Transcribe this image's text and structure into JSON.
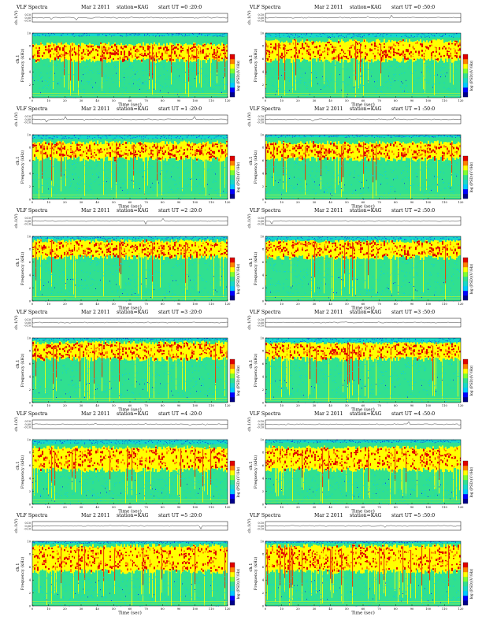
{
  "chart_data": [
    {
      "type": "heatmap",
      "title": "VLF Spectra",
      "date": "Mar 2 2011",
      "station": "station=KAG",
      "start_ut": "start  UT  =0 :20:0",
      "top_ylabel": "ch.1(V)",
      "top_yticks": [
        "0.10",
        "0.00",
        "-0.10"
      ],
      "ylabel_top": "ch.1",
      "ylabel": "Frequency  (kHz)",
      "yticks": [
        "0",
        "2",
        "4",
        "6",
        "8",
        "10"
      ],
      "ylim": [
        0,
        10
      ],
      "xlabel": "Time  (sec)",
      "xticks": [
        "0",
        "10",
        "20",
        "30",
        "40",
        "50",
        "60",
        "70",
        "80",
        "90",
        "100",
        "110",
        "120"
      ],
      "xlim": [
        0,
        120
      ],
      "colorbar_label": "log (PSD)(V²/Hz)",
      "colorbar_range": [
        -4,
        4
      ],
      "colorscale": "blue-cyan-green-yellow-red",
      "band_khz": [
        6,
        8
      ],
      "intensity": 0.55
    },
    {
      "type": "heatmap",
      "title": "VLF Spectra",
      "date": "Mar 2 2011",
      "station": "station=KAG",
      "start_ut": "start  UT  =0 :50:0",
      "top_ylabel": "ch.1(V)",
      "top_yticks": [
        "0.10",
        "0.00",
        "-0.10"
      ],
      "ylabel_top": "ch.1",
      "ylabel": "Frequency  (kHz)",
      "yticks": [
        "0",
        "2",
        "4",
        "6",
        "8",
        "10"
      ],
      "ylim": [
        0,
        10
      ],
      "xlabel": "Time  (sec)",
      "xticks": [
        "0",
        "10",
        "20",
        "30",
        "40",
        "50",
        "60",
        "70",
        "80",
        "90",
        "100",
        "110",
        "120"
      ],
      "xlim": [
        0,
        120
      ],
      "colorbar_label": "log (PSD)(V²/Hz)",
      "colorbar_range": [
        -4,
        4
      ],
      "colorscale": "blue-cyan-green-yellow-red",
      "band_khz": [
        6,
        8.5
      ],
      "intensity": 0.55
    },
    {
      "type": "heatmap",
      "title": "VLF Spectra",
      "date": "Mar 2 2011",
      "station": "station=KAG",
      "start_ut": "start  UT  =1 :20:0",
      "top_ylabel": "ch.1(V)",
      "top_yticks": [
        "0.10",
        "0.00",
        "-0.10"
      ],
      "ylabel_top": "ch.1",
      "ylabel": "Frequency  (kHz)",
      "yticks": [
        "0",
        "2",
        "4",
        "6",
        "8",
        "10"
      ],
      "ylim": [
        0,
        10
      ],
      "xlabel": "Time  (sec)",
      "xticks": [
        "0",
        "10",
        "20",
        "30",
        "40",
        "50",
        "60",
        "70",
        "80",
        "90",
        "100",
        "110",
        "120"
      ],
      "xlim": [
        0,
        120
      ],
      "colorbar_label": "log (PSD)(V²/Hz)",
      "colorbar_range": [
        -4,
        4
      ],
      "colorscale": "blue-cyan-green-yellow-red",
      "band_khz": [
        6.5,
        8.5
      ],
      "intensity": 0.5
    },
    {
      "type": "heatmap",
      "title": "VLF Spectra",
      "date": "Mar 2 2011",
      "station": "station=KAG",
      "start_ut": "start  UT  =1 :50:0",
      "top_ylabel": "ch.1(V)",
      "top_yticks": [
        "0.10",
        "0.00",
        "-0.10"
      ],
      "ylabel_top": "ch.1",
      "ylabel": "Frequency  (kHz)",
      "yticks": [
        "0",
        "2",
        "4",
        "6",
        "8",
        "10"
      ],
      "ylim": [
        0,
        10
      ],
      "xlabel": "Time  (sec)",
      "xticks": [
        "0",
        "10",
        "20",
        "30",
        "40",
        "50",
        "60",
        "70",
        "80",
        "90",
        "100",
        "110",
        "120"
      ],
      "xlim": [
        0,
        120
      ],
      "colorbar_label": "log (PSD)(V²/Hz)",
      "colorbar_range": [
        -4,
        4
      ],
      "colorscale": "blue-cyan-green-yellow-red",
      "band_khz": [
        6.5,
        8.5
      ],
      "intensity": 0.5
    },
    {
      "type": "heatmap",
      "title": "VLF Spectra",
      "date": "Mar 2 2011",
      "station": "station=KAG",
      "start_ut": "start  UT  =2 :20:0",
      "top_ylabel": "ch.1(V)",
      "top_yticks": [
        "0.10",
        "0.00",
        "-0.10"
      ],
      "ylabel_top": "ch.1",
      "ylabel": "Frequency  (kHz)",
      "yticks": [
        "0",
        "2",
        "4",
        "6",
        "8",
        "10"
      ],
      "ylim": [
        0,
        10
      ],
      "xlabel": "Time  (sec)",
      "xticks": [
        "0",
        "10",
        "20",
        "30",
        "40",
        "50",
        "60",
        "70",
        "80",
        "90",
        "100",
        "110",
        "120"
      ],
      "xlim": [
        0,
        120
      ],
      "colorbar_label": "log (PSD)(V²/Hz)",
      "colorbar_range": [
        -4,
        4
      ],
      "colorscale": "blue-cyan-green-yellow-red",
      "band_khz": [
        7,
        9
      ],
      "intensity": 0.45
    },
    {
      "type": "heatmap",
      "title": "VLF Spectra",
      "date": "Mar 2 2011",
      "station": "station=KAG",
      "start_ut": "start  UT  =2 :50:0",
      "top_ylabel": "ch.1(V)",
      "top_yticks": [
        "0.10",
        "0.00",
        "-0.10"
      ],
      "ylabel_top": "ch.1",
      "ylabel": "Frequency  (kHz)",
      "yticks": [
        "0",
        "2",
        "4",
        "6",
        "8",
        "10"
      ],
      "ylim": [
        0,
        10
      ],
      "xlabel": "Time  (sec)",
      "xticks": [
        "0",
        "10",
        "20",
        "30",
        "40",
        "50",
        "60",
        "70",
        "80",
        "90",
        "100",
        "110",
        "120"
      ],
      "xlim": [
        0,
        120
      ],
      "colorbar_label": "log (PSD)(V²/Hz)",
      "colorbar_range": [
        -4,
        4
      ],
      "colorscale": "blue-cyan-green-yellow-red",
      "band_khz": [
        7,
        9
      ],
      "intensity": 0.45
    },
    {
      "type": "heatmap",
      "title": "VLF Spectra",
      "date": "Mar 2 2011",
      "station": "station=KAG",
      "start_ut": "start  UT  =3 :20:0",
      "top_ylabel": "ch.1(V)",
      "top_yticks": [
        "0.10",
        "0.00",
        "-0.10"
      ],
      "ylabel_top": "ch.1",
      "ylabel": "Frequency  (kHz)",
      "yticks": [
        "0",
        "2",
        "4",
        "6",
        "8",
        "10"
      ],
      "ylim": [
        0,
        10
      ],
      "xlabel": "Time  (sec)",
      "xticks": [
        "0",
        "10",
        "20",
        "30",
        "40",
        "50",
        "60",
        "70",
        "80",
        "90",
        "100",
        "110",
        "120"
      ],
      "xlim": [
        0,
        120
      ],
      "colorbar_label": "log (PSD)(V²/Hz)",
      "colorbar_range": [
        -4,
        4
      ],
      "colorscale": "blue-cyan-green-yellow-red",
      "band_khz": [
        7,
        9
      ],
      "intensity": 0.45
    },
    {
      "type": "heatmap",
      "title": "VLF Spectra",
      "date": "Mar 2 2011",
      "station": "station=KAG",
      "start_ut": "start  UT  =3 :50:0",
      "top_ylabel": "ch.1(V)",
      "top_yticks": [
        "0.10",
        "0.00",
        "-0.10"
      ],
      "ylabel_top": "ch.1",
      "ylabel": "Frequency  (kHz)",
      "yticks": [
        "0",
        "2",
        "4",
        "6",
        "8",
        "10"
      ],
      "ylim": [
        0,
        10
      ],
      "xlabel": "Time  (sec)",
      "xticks": [
        "0",
        "10",
        "20",
        "30",
        "40",
        "50",
        "60",
        "70",
        "80",
        "90",
        "100",
        "110",
        "120"
      ],
      "xlim": [
        0,
        120
      ],
      "colorbar_label": "log (PSD)(V²/Hz)",
      "colorbar_range": [
        -4,
        4
      ],
      "colorscale": "blue-cyan-green-yellow-red",
      "band_khz": [
        7,
        9
      ],
      "intensity": 0.45
    },
    {
      "type": "heatmap",
      "title": "VLF Spectra",
      "date": "Mar 2 2011",
      "station": "station=KAG",
      "start_ut": "start  UT  =4 :20:0",
      "top_ylabel": "ch.1(V)",
      "top_yticks": [
        "0.10",
        "0.00",
        "-0.10"
      ],
      "ylabel_top": "ch.1",
      "ylabel": "Frequency  (kHz)",
      "yticks": [
        "0",
        "2",
        "4",
        "6",
        "8",
        "10"
      ],
      "ylim": [
        0,
        10
      ],
      "xlabel": "Time  (sec)",
      "xticks": [
        "0",
        "10",
        "20",
        "30",
        "40",
        "50",
        "60",
        "70",
        "80",
        "90",
        "100",
        "110",
        "120"
      ],
      "xlim": [
        0,
        120
      ],
      "colorbar_label": "log (PSD)(V²/Hz)",
      "colorbar_range": [
        -4,
        4
      ],
      "colorscale": "blue-cyan-green-yellow-red",
      "band_khz": [
        5.5,
        8.5
      ],
      "intensity": 0.6
    },
    {
      "type": "heatmap",
      "title": "VLF Spectra",
      "date": "Mar 2 2011",
      "station": "station=KAG",
      "start_ut": "start  UT  =4 :50:0",
      "top_ylabel": "ch.1(V)",
      "top_yticks": [
        "0.10",
        "0.00",
        "-0.10"
      ],
      "ylabel_top": "ch.1",
      "ylabel": "Frequency  (kHz)",
      "yticks": [
        "0",
        "2",
        "4",
        "6",
        "8",
        "10"
      ],
      "ylim": [
        0,
        10
      ],
      "xlabel": "Time  (sec)",
      "xticks": [
        "0",
        "10",
        "20",
        "30",
        "40",
        "50",
        "60",
        "70",
        "80",
        "90",
        "100",
        "110",
        "120"
      ],
      "xlim": [
        0,
        120
      ],
      "colorbar_label": "log (PSD)(V²/Hz)",
      "colorbar_range": [
        -4,
        4
      ],
      "colorscale": "blue-cyan-green-yellow-red",
      "band_khz": [
        5.5,
        8.5
      ],
      "intensity": 0.65
    },
    {
      "type": "heatmap",
      "title": "VLF Spectra",
      "date": "Mar 2 2011",
      "station": "station=KAG",
      "start_ut": "start  UT  =5 :20:0",
      "top_ylabel": "ch.1(V)",
      "top_yticks": [
        "0.10",
        "0.00",
        "-0.10"
      ],
      "ylabel_top": "ch.1",
      "ylabel": "Frequency  (kHz)",
      "yticks": [
        "0",
        "2",
        "4",
        "6",
        "8",
        "10"
      ],
      "ylim": [
        0,
        10
      ],
      "xlabel": "Time  (sec)",
      "xticks": [
        "0",
        "10",
        "20",
        "30",
        "40",
        "50",
        "60",
        "70",
        "80",
        "90",
        "100",
        "110",
        "120"
      ],
      "xlim": [
        0,
        120
      ],
      "colorbar_label": "log (PSD)(V²/Hz)",
      "colorbar_range": [
        -4,
        4
      ],
      "colorscale": "blue-cyan-green-yellow-red",
      "band_khz": [
        5.5,
        9
      ],
      "intensity": 0.7
    },
    {
      "type": "heatmap",
      "title": "VLF Spectra",
      "date": "Mar 2 2011",
      "station": "station=KAG",
      "start_ut": "start  UT  =5 :50:0",
      "top_ylabel": "ch.1(V)",
      "top_yticks": [
        "0.10",
        "0.00",
        "-0.10"
      ],
      "ylabel_top": "ch.1",
      "ylabel": "Frequency  (kHz)",
      "yticks": [
        "0",
        "2",
        "4",
        "6",
        "8",
        "10"
      ],
      "ylim": [
        0,
        10
      ],
      "xlabel": "Time  (sec)",
      "xticks": [
        "0",
        "10",
        "20",
        "30",
        "40",
        "50",
        "60",
        "70",
        "80",
        "90",
        "100",
        "110",
        "120"
      ],
      "xlim": [
        0,
        120
      ],
      "colorbar_label": "log (PSD)(V²/Hz)",
      "colorbar_range": [
        -4,
        4
      ],
      "colorscale": "blue-cyan-green-yellow-red",
      "band_khz": [
        5.5,
        9
      ],
      "intensity": 0.7
    }
  ],
  "colors": {
    "scale": [
      "#00008c",
      "#0000ff",
      "#00c8ff",
      "#18d8c8",
      "#30e090",
      "#7cff30",
      "#ffff00",
      "#ff8000",
      "#e00000"
    ],
    "background": "#ffffff",
    "ink": "#000000"
  }
}
